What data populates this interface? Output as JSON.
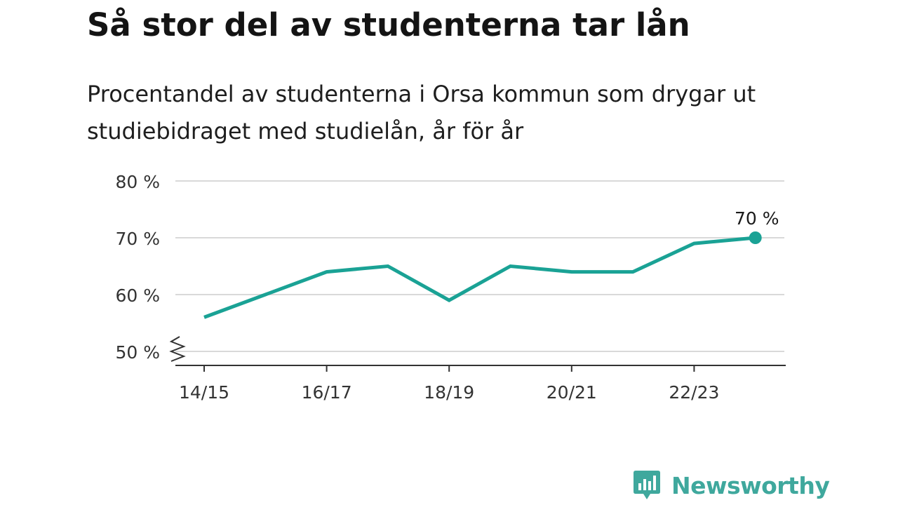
{
  "header": {
    "title": "Så stor del av studenterna tar lån",
    "subtitle": "Procentandel av studenterna i Orsa kommun som drygar ut studiebidraget med studielån, år för år"
  },
  "chart_data": {
    "type": "line",
    "title": "Så stor del av studenterna tar lån",
    "subtitle": "Procentandel av studenterna i Orsa kommun som drygar ut studiebidraget med studielån, år för år",
    "xlabel": "",
    "ylabel": "",
    "x": [
      "14/15",
      "15/16",
      "16/17",
      "17/18",
      "18/19",
      "19/20",
      "20/21",
      "21/22",
      "22/23",
      "23/24"
    ],
    "x_tick_labels": [
      "14/15",
      "16/17",
      "18/19",
      "20/21",
      "22/23"
    ],
    "series": [
      {
        "values": [
          56,
          60,
          64,
          65,
          59,
          65,
          64,
          64,
          69,
          70
        ]
      }
    ],
    "ylim": [
      50,
      80
    ],
    "y_ticks": [
      50,
      60,
      70,
      80
    ],
    "y_tick_labels": [
      "50 %",
      "60 %",
      "70 %",
      "80 %"
    ],
    "axis_break": true,
    "end_label": "70 %",
    "grid": true,
    "line_color": "#1aa295",
    "grid_color": "#d9d9d9"
  },
  "branding": {
    "name": "Newsworthy",
    "color": "#3fa89d",
    "icon": "newsworthy-logo-icon"
  }
}
